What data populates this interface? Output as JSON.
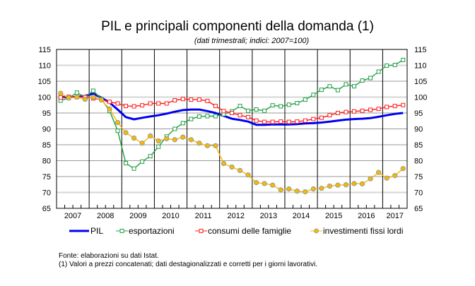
{
  "chart_data": {
    "type": "line",
    "title": "PIL e principali componenti della domanda (1)",
    "subtitle": "(dati trimestrali; indici: 2007=100)",
    "frequency": "quarterly",
    "x_start": "2007 Q1",
    "x_end": "2017 Q3",
    "year_labels": [
      "2007",
      "2008",
      "2009",
      "2010",
      "2011",
      "2012",
      "2013",
      "2014",
      "2015",
      "2016",
      "2017"
    ],
    "ylim": [
      65,
      115
    ],
    "yticks": [
      65,
      70,
      75,
      80,
      85,
      90,
      95,
      100,
      105,
      110,
      115
    ],
    "y_axis_both_sides": true,
    "grid": true,
    "legend_position": "bottom",
    "series": [
      {
        "name": "PIL",
        "color": "#0000ee",
        "marker": "none",
        "values": [
          100.0,
          100.0,
          100.0,
          100.4,
          101.1,
          99.8,
          98.3,
          96.1,
          93.7,
          93.0,
          93.5,
          93.9,
          94.3,
          94.8,
          95.4,
          95.9,
          96.1,
          96.1,
          95.6,
          95.0,
          94.1,
          93.2,
          92.8,
          92.3,
          91.3,
          91.3,
          91.4,
          91.4,
          91.4,
          91.5,
          91.7,
          91.8,
          92.0,
          92.3,
          92.6,
          92.9,
          93.1,
          93.2,
          93.4,
          93.8,
          94.3,
          94.7,
          95.0
        ]
      },
      {
        "name": "esportazioni",
        "color": "#1fa040",
        "marker": "square",
        "values": [
          98.9,
          99.7,
          101.4,
          100.0,
          102.0,
          99.4,
          95.7,
          89.4,
          79.2,
          77.5,
          79.7,
          81.4,
          84.4,
          87.6,
          90.0,
          91.8,
          93.1,
          93.9,
          94.0,
          94.0,
          94.6,
          95.5,
          97.2,
          95.7,
          96.1,
          95.7,
          97.4,
          97.1,
          97.6,
          98.1,
          99.2,
          100.7,
          102.3,
          103.4,
          102.2,
          104.0,
          103.4,
          105.2,
          106.0,
          108.0,
          109.9,
          110.1,
          111.7
        ]
      },
      {
        "name": "consumi delle famiglie",
        "color": "#ff1a1a",
        "marker": "square",
        "values": [
          99.9,
          100.1,
          100.0,
          100.0,
          99.6,
          99.2,
          98.5,
          98.0,
          97.2,
          97.1,
          97.4,
          98.0,
          98.0,
          98.0,
          99.0,
          99.4,
          99.2,
          99.2,
          98.8,
          97.2,
          95.6,
          95.0,
          94.3,
          93.7,
          92.6,
          92.2,
          92.2,
          92.3,
          92.2,
          92.3,
          92.6,
          93.1,
          93.5,
          94.3,
          95.0,
          95.3,
          95.5,
          95.7,
          96.0,
          96.3,
          96.9,
          97.2,
          97.5
        ]
      },
      {
        "name": "investimenti fissi lordi",
        "color": "#ffb400",
        "marker": "circle",
        "values": [
          101.2,
          99.7,
          100.0,
          99.3,
          100.0,
          99.1,
          96.3,
          92.0,
          88.8,
          87.1,
          85.5,
          87.8,
          86.2,
          86.9,
          86.6,
          87.4,
          86.6,
          85.5,
          84.7,
          84.7,
          79.1,
          78.0,
          76.9,
          75.5,
          73.1,
          72.8,
          72.3,
          70.8,
          71.1,
          70.4,
          70.2,
          71.1,
          71.3,
          72.0,
          72.3,
          72.4,
          72.8,
          72.7,
          74.3,
          76.3,
          74.5,
          75.3,
          77.5
        ]
      }
    ]
  },
  "notes": {
    "source": "Fonte: elaborazioni su dati Istat.",
    "footnote": "(1) Valori a prezzi concatenati; dati destagionalizzati e corretti per i giorni lavorativi."
  }
}
